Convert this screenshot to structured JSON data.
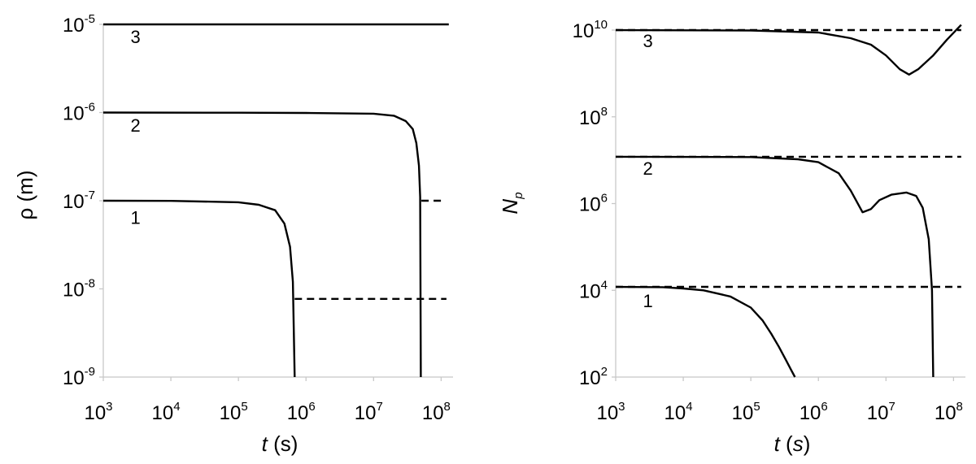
{
  "chart_data": [
    {
      "type": "line",
      "xscale": "log",
      "yscale": "log",
      "xlim": [
        1000,
        150000000
      ],
      "ylim": [
        1e-09,
        1e-05
      ],
      "xlabel": {
        "italic": "t",
        "rest": " (s)"
      },
      "ylabel": {
        "text": "ρ (m)"
      },
      "xticks": [
        {
          "base": "10",
          "exp": "3",
          "value": 1000
        },
        {
          "base": "10",
          "exp": "4",
          "value": 10000
        },
        {
          "base": "10",
          "exp": "5",
          "value": 100000
        },
        {
          "base": "10",
          "exp": "6",
          "value": 1000000
        },
        {
          "base": "10",
          "exp": "7",
          "value": 10000000
        },
        {
          "base": "10",
          "exp": "8",
          "value": 100000000
        }
      ],
      "yticks": [
        {
          "base": "10",
          "exp": "-5",
          "value": 1e-05
        },
        {
          "base": "10",
          "exp": "-6",
          "value": 1e-06
        },
        {
          "base": "10",
          "exp": "-7",
          "value": 1e-07
        },
        {
          "base": "10",
          "exp": "-8",
          "value": 1e-08
        },
        {
          "base": "10",
          "exp": "-9",
          "value": 1e-09
        }
      ],
      "grid": false,
      "series": [
        {
          "label": "3",
          "label_at": [
            3000,
            7.3e-06
          ],
          "points": [
            [
              1000,
              1e-05
            ],
            [
              130000000.0,
              1e-05
            ]
          ]
        },
        {
          "label": "2",
          "label_at": [
            3000,
            7.2e-07
          ],
          "points": [
            [
              1000,
              1e-06
            ],
            [
              100000.0,
              9.95e-07
            ],
            [
              1000000.0,
              9.9e-07
            ],
            [
              10000000.0,
              9.7e-07
            ],
            [
              20000000.0,
              9.2e-07
            ],
            [
              30000000.0,
              8e-07
            ],
            [
              38000000.0,
              6.5e-07
            ],
            [
              43000000.0,
              4.5e-07
            ],
            [
              47000000.0,
              2.5e-07
            ],
            [
              49000000.0,
              1.1e-07
            ],
            [
              50000000.0,
              1e-09
            ]
          ]
        },
        {
          "label": "1",
          "label_at": [
            3000,
            6.5e-08
          ],
          "points": [
            [
              1000,
              1e-07
            ],
            [
              10000.0,
              9.95e-08
            ],
            [
              100000.0,
              9.6e-08
            ],
            [
              200000.0,
              9e-08
            ],
            [
              350000.0,
              7.8e-08
            ],
            [
              480000.0,
              5.5e-08
            ],
            [
              580000.0,
              3e-08
            ],
            [
              640000.0,
              1.2e-08
            ],
            [
              680000.0,
              1e-09
            ]
          ]
        },
        {
          "dashed": true,
          "points": [
            [
              51000000.0,
              1e-07
            ],
            [
              100000000.0,
              1e-07
            ]
          ]
        },
        {
          "dashed": true,
          "points": [
            [
              680000.0,
              7.7e-09
            ],
            [
              120000000.0,
              7.7e-09
            ]
          ]
        }
      ]
    },
    {
      "type": "line",
      "xscale": "log",
      "yscale": "log",
      "xlim": [
        1000,
        150000000
      ],
      "ylim": [
        100,
        10000000000.0
      ],
      "xlabel": {
        "italic": "t",
        "rest": " (",
        "italic2": "s",
        "rest2": ")"
      },
      "ylabel": {
        "main": "N",
        "sub": "p"
      },
      "xticks": [
        {
          "base": "10",
          "exp": "3",
          "value": 1000
        },
        {
          "base": "10",
          "exp": "4",
          "value": 10000
        },
        {
          "base": "10",
          "exp": "5",
          "value": 100000
        },
        {
          "base": "10",
          "exp": "6",
          "value": 1000000
        },
        {
          "base": "10",
          "exp": "7",
          "value": 10000000
        },
        {
          "base": "10",
          "exp": "8",
          "value": 100000000
        }
      ],
      "yticks": [
        {
          "base": "10",
          "exp": "10",
          "value": 10000000000.0
        },
        {
          "base": "10",
          "exp": "8",
          "value": 100000000.0
        },
        {
          "base": "10",
          "exp": "6",
          "value": 1000000.0
        },
        {
          "base": "10",
          "exp": "4",
          "value": 10000.0
        },
        {
          "base": "10",
          "exp": "2",
          "value": 100
        }
      ],
      "grid": false,
      "series": [
        {
          "label": "3",
          "label_at": [
            3000,
            5700000000.0
          ],
          "points": [
            [
              1000,
              10000000000.0
            ],
            [
              100000.0,
              9800000000.0
            ],
            [
              1000000.0,
              8800000000.0
            ],
            [
              3000000.0,
              6500000000.0
            ],
            [
              6000000.0,
              4600000000.0
            ],
            [
              10000000.0,
              2600000000.0
            ],
            [
              16000000.0,
              1250000000.0
            ],
            [
              22000000.0,
              940000000.0
            ],
            [
              30000000.0,
              1250000000.0
            ],
            [
              50000000.0,
              2600000000.0
            ],
            [
              80000000.0,
              6000000000.0
            ],
            [
              130000000.0,
              13200000000.0
            ]
          ]
        },
        {
          "label": "2",
          "label_at": [
            3000,
            6500000.0
          ],
          "points": [
            [
              1000,
              12000000.0
            ],
            [
              100000.0,
              11800000.0
            ],
            [
              500000.0,
              10500000.0
            ],
            [
              1000000.0,
              9000000.0
            ],
            [
              2000000.0,
              5000000.0
            ],
            [
              3000000.0,
              2000000.0
            ],
            [
              4500000.0,
              630000.0
            ],
            [
              6000000.0,
              750000.0
            ],
            [
              8000000.0,
              1200000.0
            ],
            [
              12000000.0,
              1600000.0
            ],
            [
              20000000.0,
              1800000.0
            ],
            [
              28000000.0,
              1500000.0
            ],
            [
              35000000.0,
              800000.0
            ],
            [
              43000000.0,
              150000.0
            ],
            [
              48000000.0,
              10000.0
            ],
            [
              50000000.0,
              100
            ]
          ]
        },
        {
          "label": "1",
          "label_at": [
            3000,
            5800.0
          ],
          "points": [
            [
              1000,
              12000.0
            ],
            [
              5000.0,
              11800.0
            ],
            [
              10000.0,
              11000.0
            ],
            [
              20000.0,
              10000.0
            ],
            [
              50000.0,
              7200.0
            ],
            [
              100000.0,
              4000.0
            ],
            [
              150000.0,
              2000.0
            ],
            [
              200000.0,
              1000.0
            ],
            [
              260000.0,
              500
            ],
            [
              330000.0,
              250
            ],
            [
              400000.0,
              140
            ],
            [
              450000.0,
              100
            ]
          ]
        },
        {
          "dashed": true,
          "points": [
            [
              1000,
              10000000000.0
            ],
            [
              130000000.0,
              10000000000.0
            ]
          ]
        },
        {
          "dashed": true,
          "points": [
            [
              1000,
              12000000.0
            ],
            [
              130000000.0,
              12000000.0
            ]
          ]
        },
        {
          "dashed": true,
          "points": [
            [
              1000,
              12000.0
            ],
            [
              130000000.0,
              12000.0
            ]
          ]
        }
      ]
    }
  ]
}
